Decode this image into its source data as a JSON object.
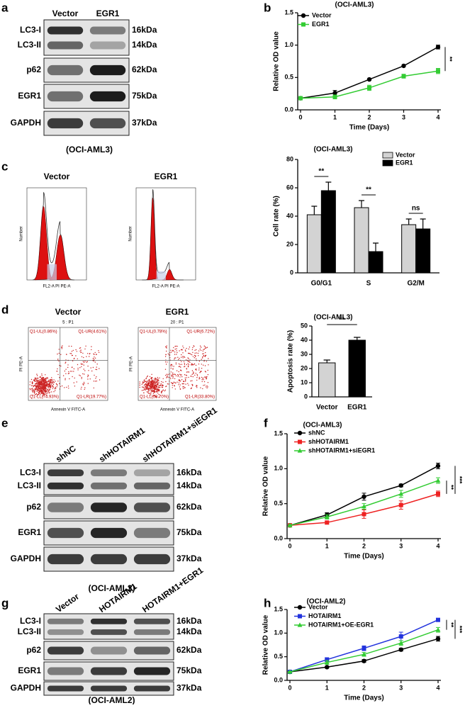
{
  "panel_letters": [
    "a",
    "b",
    "c",
    "d",
    "e",
    "f",
    "g",
    "h"
  ],
  "blots": [
    {
      "lanes": [
        "Vector",
        "EGR1"
      ],
      "rows": [
        {
          "labels": [
            "LC3-I",
            "LC3-II"
          ],
          "sizes": [
            "16kDa",
            "14kDa"
          ]
        },
        {
          "labels": [
            "p62"
          ],
          "sizes": [
            "62kDa"
          ]
        },
        {
          "labels": [
            "EGR1"
          ],
          "sizes": [
            "75kDa"
          ]
        },
        {
          "labels": [
            "GAPDH"
          ],
          "sizes": [
            "37kDa"
          ]
        }
      ],
      "caption": "(OCI-AML3)"
    },
    {
      "lanes": [
        "shNC",
        "shHOTAIRM1",
        "shHOTAIRM1+siEGR1"
      ],
      "rows": [
        {
          "labels": [
            "LC3-I",
            "LC3-II"
          ],
          "sizes": [
            "16kDa",
            "14kDa"
          ]
        },
        {
          "labels": [
            "p62"
          ],
          "sizes": [
            "62kDa"
          ]
        },
        {
          "labels": [
            "EGR1"
          ],
          "sizes": [
            "75kDa"
          ]
        },
        {
          "labels": [
            "GAPDH"
          ],
          "sizes": [
            "37kDa"
          ]
        }
      ],
      "caption": "(OCI-AML3)"
    },
    {
      "lanes": [
        "Vector",
        "HOTAIRM1",
        "HOTAIRM1+EGR1"
      ],
      "rows": [
        {
          "labels": [
            "LC3-I",
            "LC3-II"
          ],
          "sizes": [
            "16kDa",
            "14kDa"
          ]
        },
        {
          "labels": [
            "p62"
          ],
          "sizes": [
            "62kDa"
          ]
        },
        {
          "labels": [
            "EGR1"
          ],
          "sizes": [
            "75kDa"
          ]
        },
        {
          "labels": [
            "GAPDH"
          ],
          "sizes": [
            "37kDa"
          ]
        }
      ],
      "caption": "(OCI-AML2)"
    }
  ],
  "flow": {
    "histograms": [
      {
        "title": "Vector",
        "x_label": "FL2-A PI PE-A",
        "y_label": "Number"
      },
      {
        "title": "EGR1",
        "x_label": "FL2-A PI PE-A",
        "y_label": "Number"
      }
    ],
    "scatter": [
      {
        "title": "Vector",
        "gate": "5 : P1",
        "x_label": "Annexin V FITC-A",
        "y_label": "PI PE-A",
        "quadrants": [
          "Q1-UL(0.86%)",
          "Q1-UR(4.61%)",
          "Q1-LL(74.93%)",
          "Q1-LR(19.77%)"
        ]
      },
      {
        "title": "EGR1",
        "gate": "20 : P1",
        "x_label": "Annexin V FITC-A",
        "y_label": "PI PE-A",
        "quadrants": [
          "Q1-UL(0.78%)",
          "Q1-UR(6.72%)",
          "Q1-LL(58.70%)",
          "Q1-LR(33.80%)"
        ]
      }
    ]
  },
  "chart_data": [
    {
      "type": "line",
      "title": "(OCI-AML3)",
      "x_label": "Time (Days)",
      "y_label": "Relative OD value",
      "x": [
        0,
        1,
        2,
        3,
        4
      ],
      "xlim": [
        0,
        4
      ],
      "xticks": [
        0,
        1,
        2,
        3,
        4
      ],
      "ylim": [
        0,
        1.5
      ],
      "yticks": [
        {
          "value": 0,
          "label": "0.0"
        },
        0.5,
        {
          "value": 1,
          "label": "1.0"
        },
        1.5
      ],
      "series": [
        {
          "name": "Vector",
          "color": "#000000",
          "marker": "circle",
          "values": [
            0.18,
            0.26,
            0.47,
            0.68,
            0.97
          ],
          "errors": [
            0.01,
            0.04,
            0.01,
            0.01,
            0.03
          ]
        },
        {
          "name": "EGR1",
          "color": "#33cc33",
          "marker": "square",
          "values": [
            0.18,
            0.2,
            0.34,
            0.52,
            0.6
          ],
          "errors": [
            0.01,
            0.03,
            0.04,
            0.03,
            0.04
          ]
        }
      ],
      "annotations": [
        "**"
      ]
    },
    {
      "type": "bar",
      "title": "(OCI-AML3)",
      "y_label": "Cell rate (%)",
      "categories": [
        "G0/G1",
        "S",
        "G2/M"
      ],
      "ylim": [
        0,
        80
      ],
      "yticks": [
        0,
        20,
        40,
        60,
        80
      ],
      "series": [
        {
          "name": "Vector",
          "color": "#d3d3d3",
          "values": [
            41,
            46,
            34
          ],
          "errors": [
            6,
            5,
            4
          ]
        },
        {
          "name": "EGR1",
          "color": "#000000",
          "values": [
            58,
            15,
            31
          ],
          "errors": [
            6,
            6,
            7
          ]
        }
      ],
      "annotations": [
        "**",
        "**",
        "ns"
      ]
    },
    {
      "type": "bar",
      "title": "(OCI-AML3)",
      "y_label": "Apoptosis rate (%)",
      "categories": [
        "Vector",
        "EGR1"
      ],
      "ylim": [
        0,
        50
      ],
      "yticks": [
        0,
        10,
        20,
        30,
        40,
        50
      ],
      "values": [
        24,
        40
      ],
      "errors": [
        2,
        2
      ],
      "colors": [
        "#d3d3d3",
        "#000000"
      ],
      "annotations": [
        "**"
      ]
    },
    {
      "type": "line",
      "title": "(OCI-AML3)",
      "x_label": "Time (Days)",
      "y_label": "Relative OD value",
      "x": [
        0,
        1,
        2,
        3,
        4
      ],
      "xlim": [
        0,
        4
      ],
      "xticks": [
        0,
        1,
        2,
        3,
        4
      ],
      "ylim": [
        0,
        1.5
      ],
      "yticks": [
        {
          "value": 0,
          "label": "0.0"
        },
        0.5,
        {
          "value": 1,
          "label": "1.0"
        },
        1.5
      ],
      "series": [
        {
          "name": "shNC",
          "color": "#000000",
          "marker": "circle",
          "values": [
            0.19,
            0.34,
            0.6,
            0.76,
            1.04
          ],
          "errors": [
            0.01,
            0.03,
            0.05,
            0.02,
            0.04
          ]
        },
        {
          "name": "shHOTAIRM1",
          "color": "#ee2222",
          "marker": "square",
          "values": [
            0.19,
            0.23,
            0.35,
            0.48,
            0.64
          ],
          "errors": [
            0.01,
            0.02,
            0.06,
            0.06,
            0.04
          ]
        },
        {
          "name": "shHOTAIRM1+siEGR1",
          "color": "#33cc33",
          "marker": "triangle",
          "values": [
            0.19,
            0.31,
            0.46,
            0.64,
            0.83
          ],
          "errors": [
            0.01,
            0.03,
            0.04,
            0.05,
            0.04
          ]
        }
      ],
      "annotations": [
        "**",
        "***"
      ]
    },
    {
      "type": "line",
      "title": "(OCI-AML2)",
      "x_label": "Time (Days)",
      "y_label": "Relative OD value",
      "x": [
        0,
        1,
        2,
        3,
        4
      ],
      "xlim": [
        0,
        4
      ],
      "xticks": [
        0,
        1,
        2,
        3,
        4
      ],
      "ylim": [
        0,
        1.5
      ],
      "yticks": [
        {
          "value": 0,
          "label": "0.0"
        },
        0.5,
        {
          "value": 1,
          "label": "1.0"
        },
        1.5
      ],
      "series": [
        {
          "name": "Vector",
          "color": "#000000",
          "marker": "circle",
          "values": [
            0.18,
            0.28,
            0.41,
            0.65,
            0.88
          ],
          "errors": [
            0.01,
            0.02,
            0.03,
            0.03,
            0.05
          ]
        },
        {
          "name": "HOTAIRM1",
          "color": "#2233dd",
          "marker": "square",
          "values": [
            0.18,
            0.44,
            0.68,
            0.93,
            1.28
          ],
          "errors": [
            0.01,
            0.04,
            0.05,
            0.09,
            0.03
          ]
        },
        {
          "name": "HOTAIRM1+OE-EGR1",
          "color": "#33cc33",
          "marker": "triangle",
          "values": [
            0.18,
            0.38,
            0.55,
            0.79,
            1.07
          ],
          "errors": [
            0.01,
            0.04,
            0.04,
            0.05,
            0.05
          ]
        }
      ],
      "annotations": [
        "**",
        "***"
      ]
    }
  ]
}
